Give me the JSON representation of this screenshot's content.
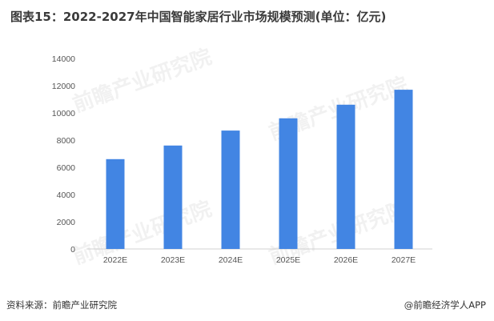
{
  "title": "图表15：2022-2027年中国智能家居行业市场规模预测(单位：亿元)",
  "source": "资料来源：前瞻产业研究院",
  "credit": "@前瞻经济学人APP",
  "watermark": "前瞻产业研究院",
  "colors": {
    "bar": "#4285e3",
    "axis": "#d0d0d0"
  },
  "chart_data": {
    "type": "bar",
    "title": "图表15：2022-2027年中国智能家居行业市场规模预测(单位：亿元)",
    "categories": [
      "2022E",
      "2023E",
      "2024E",
      "2025E",
      "2026E",
      "2027E"
    ],
    "values": [
      6600,
      7600,
      8700,
      9600,
      10600,
      11700
    ],
    "ylim": [
      0,
      14000
    ],
    "yticks": [
      0,
      2000,
      4000,
      6000,
      8000,
      10000,
      12000,
      14000
    ],
    "xlabel": "",
    "ylabel": "",
    "grid": false,
    "legend": "none"
  }
}
